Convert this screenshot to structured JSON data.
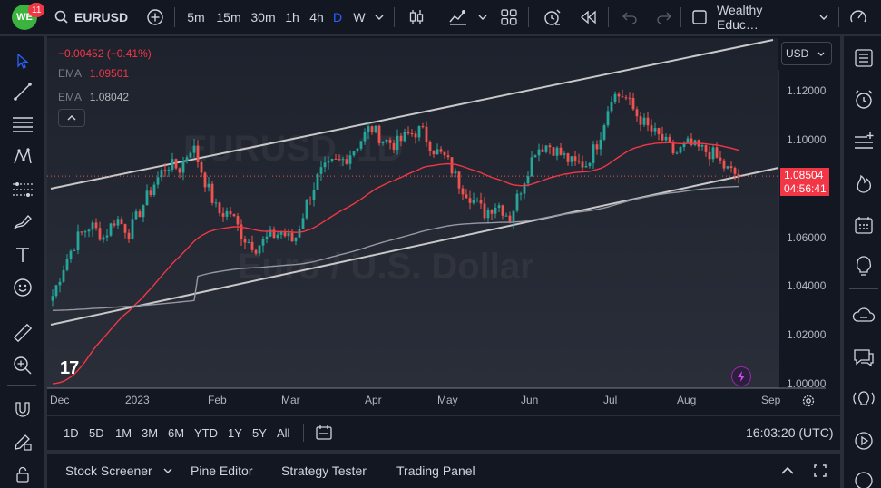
{
  "topbar": {
    "badge_count": "11",
    "symbol": "EURUSD",
    "intervals": [
      "5m",
      "15m",
      "30m",
      "1h",
      "4h",
      "D",
      "W"
    ],
    "active_interval": "D",
    "layout_name": "Wealthy Educ…"
  },
  "chart": {
    "watermark_symbol": "EURUSD, 1D",
    "watermark_desc": "Euro / U.S. Dollar",
    "change_text": "−0.00452 (−0.41%)",
    "ema1_label": "EMA",
    "ema1_value": "1.09501",
    "ema2_label": "EMA",
    "ema2_value": "1.08042",
    "currency": "USD",
    "price_ticks": [
      "1.12000",
      "1.10000",
      "1.08000",
      "1.06000",
      "1.04000",
      "1.02000",
      "1.00000"
    ],
    "time_ticks": [
      "Dec",
      "2023",
      "Feb",
      "Mar",
      "Apr",
      "May",
      "Jun",
      "Jul",
      "Aug",
      "Sep"
    ],
    "last_price": "1.08504",
    "countdown": "04:56:41",
    "logo_text": "17",
    "colors": {
      "up": "#26a69a",
      "down": "#ef5350",
      "ema_fast": "#f23645",
      "ema_slow": "#9598a1",
      "channel": "#c8c8c8",
      "background": "#131722"
    }
  },
  "chart_data": {
    "type": "candlestick",
    "symbol": "EURUSD",
    "interval": "1D",
    "ylim": [
      0.995,
      1.135
    ],
    "x_labels": [
      "Dec",
      "2023",
      "Feb",
      "Mar",
      "Apr",
      "May",
      "Jun",
      "Jul",
      "Aug",
      "Sep"
    ],
    "close_path_estimate": [
      1.036,
      1.05,
      1.06,
      1.065,
      1.06,
      1.068,
      1.062,
      1.072,
      1.082,
      1.09,
      1.088,
      1.098,
      1.083,
      1.07,
      1.07,
      1.06,
      1.056,
      1.06,
      1.062,
      1.058,
      1.074,
      1.086,
      1.09,
      1.092,
      1.098,
      1.105,
      1.1,
      1.098,
      1.102,
      1.104,
      1.096,
      1.092,
      1.082,
      1.076,
      1.07,
      1.074,
      1.068,
      1.082,
      1.096,
      1.098,
      1.094,
      1.09,
      1.09,
      1.1,
      1.118,
      1.118,
      1.11,
      1.104,
      1.1,
      1.094,
      1.098,
      1.096,
      1.094,
      1.088,
      1.085
    ],
    "series": [
      {
        "name": "EMA",
        "value": 1.09501
      },
      {
        "name": "EMA",
        "value": 1.08042
      }
    ],
    "last_price": 1.08504
  },
  "bottombar": {
    "ranges": [
      "1D",
      "5D",
      "1M",
      "3M",
      "6M",
      "YTD",
      "1Y",
      "5Y",
      "All"
    ],
    "clock": "16:03:20 (UTC)"
  },
  "panelbar": {
    "tabs": [
      "Stock Screener",
      "Pine Editor",
      "Strategy Tester",
      "Trading Panel"
    ]
  }
}
